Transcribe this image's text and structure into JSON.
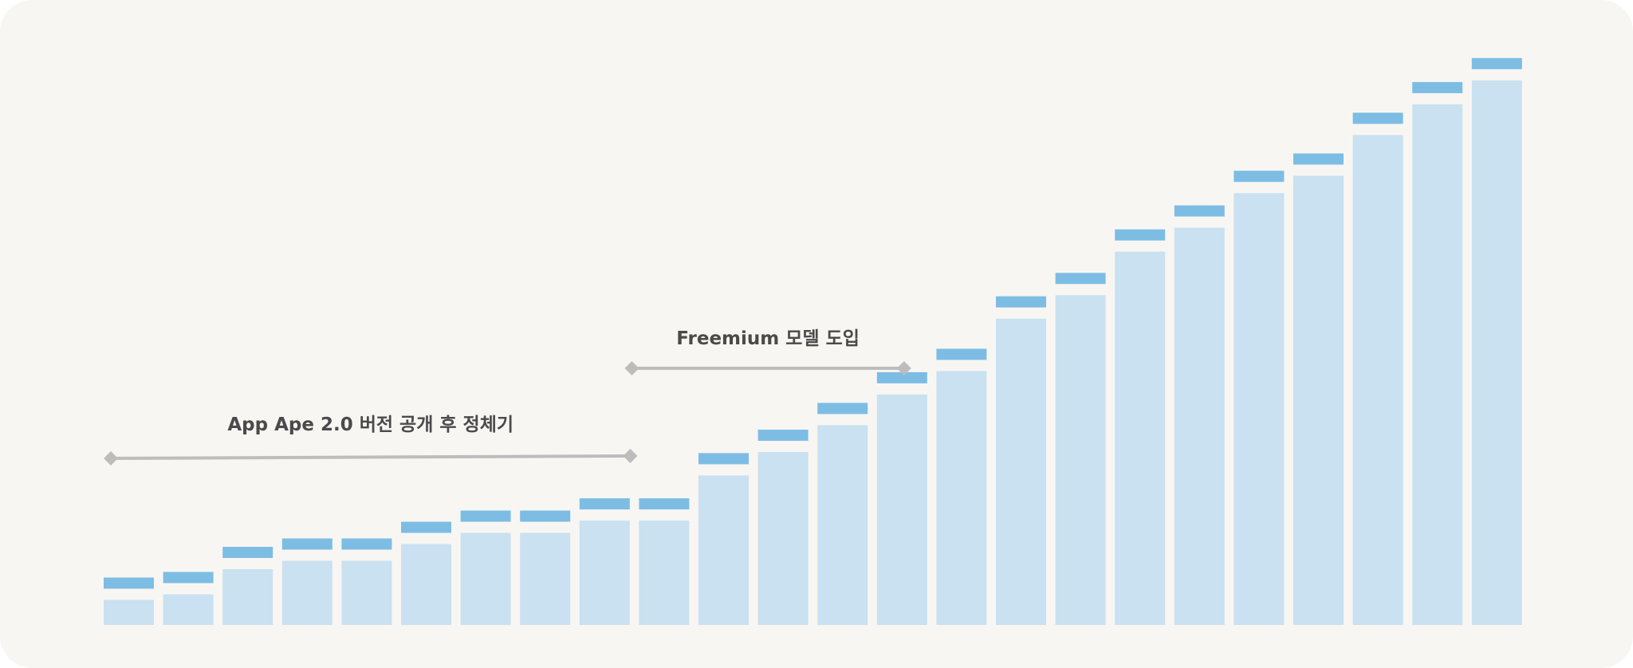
{
  "chart_data": {
    "type": "bar",
    "title": "",
    "xlabel": "",
    "ylabel": "",
    "grid": false,
    "legend": "none",
    "ylim": [
      0,
      100
    ],
    "values": [
      4.5,
      5.5,
      10,
      11.5,
      11.5,
      14.5,
      16.5,
      16.5,
      18.7,
      18.7,
      26.8,
      31,
      35.8,
      41.3,
      45.5,
      54.9,
      59.1,
      66.9,
      71.2,
      77.4,
      80.5,
      87.8,
      93.3,
      97.6
    ],
    "annotations": [
      {
        "id": "plateau",
        "label": "App Ape 2.0 버전 공개 후 정체기",
        "from_index": 0,
        "to_index": 9
      },
      {
        "id": "freemium",
        "label": "Freemium 모델 도입",
        "from_index": 9,
        "to_index": 13
      }
    ],
    "colors": {
      "bar": "#c9e1f0",
      "bar_cap": "#7dbde4",
      "range_line": "#bdbdbd",
      "annotation_text": "#4a4a4a",
      "background": "#f8f6f3"
    }
  }
}
